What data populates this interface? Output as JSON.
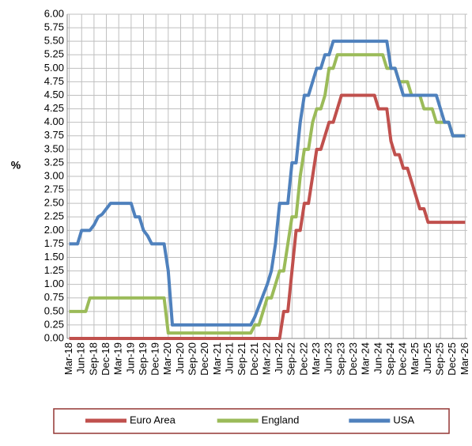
{
  "chart_data": {
    "type": "line",
    "y_label": "%",
    "categories": [
      "Mar-18",
      null,
      null,
      "Jun-18",
      null,
      null,
      "Sep-18",
      null,
      null,
      "Dec-18",
      null,
      null,
      "Mar-19",
      null,
      null,
      "Jun-19",
      null,
      null,
      "Sep-19",
      null,
      null,
      "Dec-19",
      null,
      null,
      "Mar-20",
      null,
      null,
      "Jun-20",
      null,
      null,
      "Sep-20",
      null,
      null,
      "Dec-20",
      null,
      null,
      "Mar-21",
      null,
      null,
      "Jun-21",
      null,
      null,
      "Sep-21",
      null,
      null,
      "Dec-21",
      null,
      null,
      "Mar-22",
      null,
      null,
      "Jun-22",
      null,
      null,
      "Sep-22",
      null,
      null,
      "Dec-22",
      null,
      null,
      "Mar-23",
      null,
      null,
      "Jun-23",
      null,
      null,
      "Sep-23",
      null,
      null,
      "Dec-23",
      null,
      null,
      "Mar-24",
      null,
      null,
      "Jun-24",
      null,
      null,
      "Sep-24",
      null,
      null,
      "Dec-24",
      null,
      null,
      "Mar-25",
      null,
      null,
      "Jun-25",
      null,
      null,
      "Sep-25",
      null,
      null,
      "Dec-25",
      null,
      null,
      "Mar-26"
    ],
    "series": [
      {
        "name": "Euro Area",
        "color": "#c0504d",
        "values": [
          0,
          0,
          0,
          0,
          0,
          0,
          0,
          0,
          0,
          0,
          0,
          0,
          0,
          0,
          0,
          0,
          0,
          0,
          0,
          0,
          0,
          0,
          0,
          0,
          0,
          0,
          0,
          0,
          0,
          0,
          0,
          0,
          0,
          0,
          0,
          0,
          0,
          0,
          0,
          0,
          0,
          0,
          0,
          0,
          0,
          0,
          0,
          0,
          0,
          0,
          0,
          0,
          0.5,
          0.5,
          1.25,
          2,
          2,
          2.5,
          2.5,
          3,
          3.5,
          3.5,
          3.75,
          4,
          4,
          4.25,
          4.5,
          4.5,
          4.5,
          4.5,
          4.5,
          4.5,
          4.5,
          4.5,
          4.5,
          4.25,
          4.25,
          4.25,
          3.65,
          3.4,
          3.4,
          3.15,
          3.15,
          2.9,
          2.65,
          2.4,
          2.4,
          2.15,
          2.15,
          2.15,
          2.15,
          2.15,
          2.15,
          2.15,
          2.15,
          2.15,
          2.15
        ]
      },
      {
        "name": "England",
        "color": "#9bbb59",
        "values": [
          0.5,
          0.5,
          0.5,
          0.5,
          0.5,
          0.75,
          0.75,
          0.75,
          0.75,
          0.75,
          0.75,
          0.75,
          0.75,
          0.75,
          0.75,
          0.75,
          0.75,
          0.75,
          0.75,
          0.75,
          0.75,
          0.75,
          0.75,
          0.75,
          0.1,
          0.1,
          0.1,
          0.1,
          0.1,
          0.1,
          0.1,
          0.1,
          0.1,
          0.1,
          0.1,
          0.1,
          0.1,
          0.1,
          0.1,
          0.1,
          0.1,
          0.1,
          0.1,
          0.1,
          0.1,
          0.25,
          0.25,
          0.5,
          0.75,
          0.75,
          1,
          1.25,
          1.25,
          1.75,
          2.25,
          2.25,
          3,
          3.5,
          3.5,
          4,
          4.25,
          4.25,
          4.5,
          5,
          5,
          5.25,
          5.25,
          5.25,
          5.25,
          5.25,
          5.25,
          5.25,
          5.25,
          5.25,
          5.25,
          5.25,
          5.25,
          5,
          5,
          5,
          4.75,
          4.75,
          4.75,
          4.5,
          4.5,
          4.5,
          4.25,
          4.25,
          4.25,
          4,
          4,
          4,
          4,
          3.75,
          3.75,
          3.75,
          3.75
        ]
      },
      {
        "name": "USA",
        "color": "#4f81bd",
        "values": [
          1.75,
          1.75,
          1.75,
          2,
          2,
          2,
          2.1,
          2.25,
          2.3,
          2.4,
          2.5,
          2.5,
          2.5,
          2.5,
          2.5,
          2.5,
          2.25,
          2.25,
          2,
          1.9,
          1.75,
          1.75,
          1.75,
          1.75,
          1.25,
          0.25,
          0.25,
          0.25,
          0.25,
          0.25,
          0.25,
          0.25,
          0.25,
          0.25,
          0.25,
          0.25,
          0.25,
          0.25,
          0.25,
          0.25,
          0.25,
          0.25,
          0.25,
          0.25,
          0.25,
          0.4,
          0.6,
          0.8,
          1,
          1.25,
          1.75,
          2.5,
          2.5,
          2.5,
          3.25,
          3.25,
          4,
          4.5,
          4.5,
          4.75,
          5,
          5,
          5.25,
          5.25,
          5.5,
          5.5,
          5.5,
          5.5,
          5.5,
          5.5,
          5.5,
          5.5,
          5.5,
          5.5,
          5.5,
          5.5,
          5.5,
          5.5,
          5,
          5,
          4.75,
          4.5,
          4.5,
          4.5,
          4.5,
          4.5,
          4.5,
          4.5,
          4.5,
          4.5,
          4.25,
          4,
          4,
          3.75,
          3.75,
          3.75,
          3.75
        ]
      }
    ],
    "ylim": [
      0,
      6
    ],
    "yticks": [
      {
        "value": 0,
        "label": "0.00"
      },
      {
        "value": 0.25,
        "label": "0.25"
      },
      {
        "value": 0.5,
        "label": "0.50"
      },
      {
        "value": 0.75,
        "label": "0.75"
      },
      {
        "value": 1,
        "label": "1.00"
      },
      {
        "value": 1.25,
        "label": "1.25"
      },
      {
        "value": 1.5,
        "label": "1.50"
      },
      {
        "value": 1.75,
        "label": "1.75"
      },
      {
        "value": 2,
        "label": "2.00"
      },
      {
        "value": 2.25,
        "label": "2.25"
      },
      {
        "value": 2.5,
        "label": "2.50"
      },
      {
        "value": 2.75,
        "label": "2.75"
      },
      {
        "value": 3,
        "label": "3.00"
      },
      {
        "value": 3.25,
        "label": "3.25"
      },
      {
        "value": 3.5,
        "label": "3.50"
      },
      {
        "value": 3.75,
        "label": "3.75"
      },
      {
        "value": 4,
        "label": "4.00"
      },
      {
        "value": 4.25,
        "label": "4.25"
      },
      {
        "value": 4.5,
        "label": "4.50"
      },
      {
        "value": 4.75,
        "label": "4.75"
      },
      {
        "value": 5,
        "label": "5.00"
      },
      {
        "value": 5.25,
        "label": "5.25"
      },
      {
        "value": 5.5,
        "label": "5.50"
      },
      {
        "value": 5.75,
        "label": "5.75"
      },
      {
        "value": 6,
        "label": "6.00"
      }
    ],
    "grid": true,
    "legend": "bottom"
  }
}
